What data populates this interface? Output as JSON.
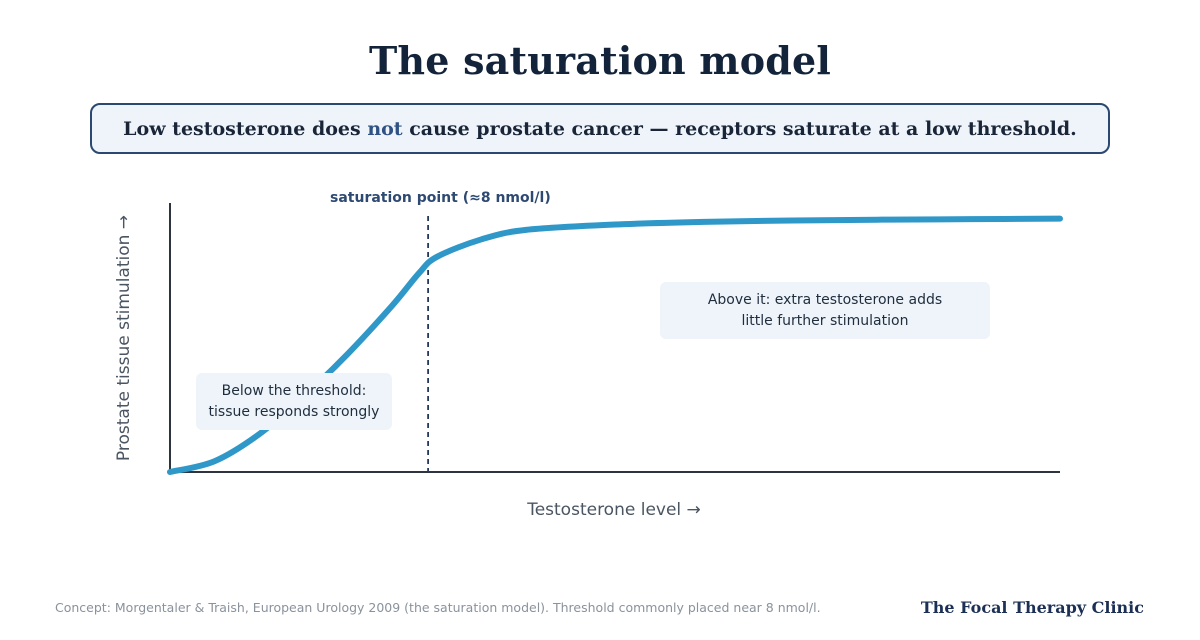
{
  "title": "The saturation model",
  "subtitle": {
    "before": "Low testosterone does ",
    "emphasis": "not",
    "after": " cause prostate cancer — receptors saturate at a low threshold."
  },
  "chart_data": {
    "type": "line",
    "xlabel": "Testosterone level →",
    "ylabel": "Prostate tissue stimulation →",
    "series": [
      {
        "x": [
          0,
          0.05,
          0.1,
          0.15,
          0.2,
          0.25,
          0.28,
          0.3,
          0.35,
          0.4,
          0.5,
          0.6,
          0.7,
          0.8,
          0.9,
          1.0
        ],
        "y": [
          0.0,
          0.04,
          0.14,
          0.28,
          0.44,
          0.62,
          0.74,
          0.8,
          0.865,
          0.9,
          0.92,
          0.93,
          0.935,
          0.938,
          0.94,
          0.942
        ]
      }
    ],
    "annotations": {
      "saturation_point": {
        "x": 0.29,
        "label": "saturation point (≈8 nmol/l)"
      },
      "below": [
        "Below the threshold:",
        "tissue responds strongly"
      ],
      "above": [
        "Above it: extra testosterone adds",
        "little further stimulation"
      ]
    },
    "colors": {
      "curve": "#2f98c8",
      "axis": "#2d3440",
      "dashed": "#24395c"
    },
    "grid": false,
    "legend": "none"
  },
  "footer": {
    "note": "Concept: Morgentaler & Traish, European Urology 2009 (the saturation model). Threshold commonly placed near 8 nmol/l.",
    "brand": "The Focal Therapy Clinic"
  }
}
